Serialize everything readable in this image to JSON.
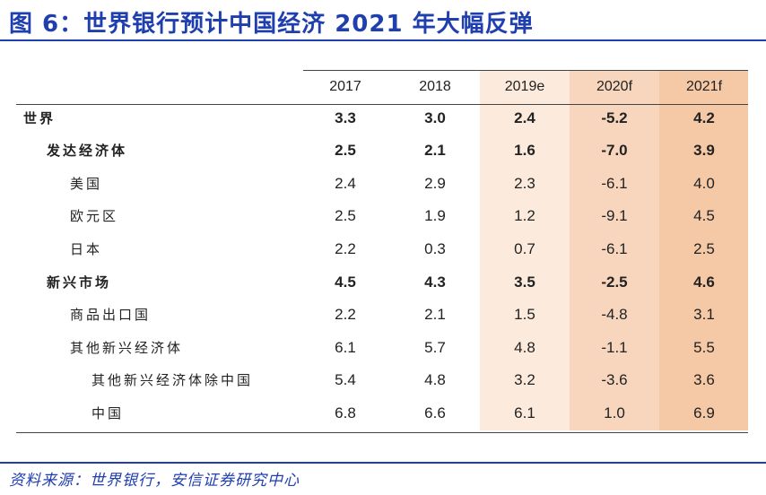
{
  "title": "图 6：世界银行预计中国经济 2021 年大幅反弹",
  "columns": [
    "2017",
    "2018",
    "2019e",
    "2020f",
    "2021f"
  ],
  "rows": [
    {
      "label": "世界",
      "values": [
        "3.3",
        "3.0",
        "2.4",
        "-5.2",
        "4.2"
      ]
    },
    {
      "label": "发达经济体",
      "values": [
        "2.5",
        "2.1",
        "1.6",
        "-7.0",
        "3.9"
      ]
    },
    {
      "label": "美国",
      "values": [
        "2.4",
        "2.9",
        "2.3",
        "-6.1",
        "4.0"
      ]
    },
    {
      "label": "欧元区",
      "values": [
        "2.5",
        "1.9",
        "1.2",
        "-9.1",
        "4.5"
      ]
    },
    {
      "label": "日本",
      "values": [
        "2.2",
        "0.3",
        "0.7",
        "-6.1",
        "2.5"
      ]
    },
    {
      "label": "新兴市场",
      "values": [
        "4.5",
        "4.3",
        "3.5",
        "-2.5",
        "4.6"
      ]
    },
    {
      "label": "商品出口国",
      "values": [
        "2.2",
        "2.1",
        "1.5",
        "-4.8",
        "3.1"
      ]
    },
    {
      "label": "其他新兴经济体",
      "values": [
        "6.1",
        "5.7",
        "4.8",
        "-1.1",
        "5.5"
      ]
    },
    {
      "label": "其他新兴经济体除中国",
      "values": [
        "5.4",
        "4.8",
        "3.2",
        "-3.6",
        "3.6"
      ]
    },
    {
      "label": "中国",
      "values": [
        "6.8",
        "6.6",
        "6.1",
        "1.0",
        "6.9"
      ]
    }
  ],
  "source": "资料来源：世界银行，安信证券研究中心",
  "colors": {
    "title": "#1f3fae",
    "band_2019e": "#fcebdc",
    "band_2020f": "#f7d6bd",
    "band_2021f": "#f5c8a6"
  }
}
